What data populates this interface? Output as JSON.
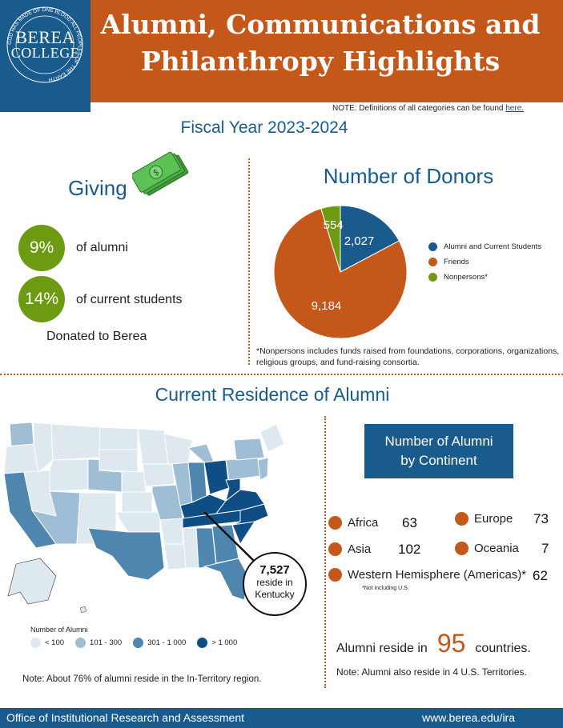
{
  "header": {
    "logo_line1": "BEREA",
    "logo_line2": "COLLEGE",
    "logo_ring_text": "GOD HAS MADE OF ONE BLOOD ALL PEOPLES OF THE EARTH",
    "title_line1": "Alumni, Communications and",
    "title_line2": "Philanthropy Highlights"
  },
  "note": {
    "text": "NOTE: Definitions of all categories can be found ",
    "link": "here."
  },
  "fiscal_year": "Fiscal Year 2023-2024",
  "giving": {
    "title": "Giving",
    "alumni_pct": "9%",
    "alumni_label": "of alumni",
    "students_pct": "14%",
    "students_label": "of current students",
    "donated": "Donated to Berea"
  },
  "donors": {
    "title": "Number of Donors",
    "note": "*Nonpersons includes funds raised from foundations, corporations, organizations, religious groups, and fund-raising consortia."
  },
  "chart_data": {
    "type": "pie",
    "title": "Number of Donors",
    "series": [
      {
        "name": "Alumni and Current Students",
        "value": 2027,
        "label": "2,027",
        "color": "#1a5b8e"
      },
      {
        "name": "Friends",
        "value": 9184,
        "label": "9,184",
        "color": "#c4571a"
      },
      {
        "name": "Nonpersons*",
        "value": 554,
        "label": "554",
        "color": "#6c9b12"
      }
    ],
    "legend_position": "right"
  },
  "residence": {
    "title": "Current Residence of Alumni",
    "ky_number": "7,527",
    "ky_line1": "reside in",
    "ky_line2": "Kentucky",
    "legend_title": "Number of Alumni",
    "legend": [
      {
        "label": "< 100",
        "color": "#dde8ef"
      },
      {
        "label": "101 - 300",
        "color": "#9fbdd5"
      },
      {
        "label": "301 - 1 000",
        "color": "#4f86b0"
      },
      {
        "label": "> 1 000",
        "color": "#0f4e85"
      }
    ],
    "note": "Note: About 76% of alumni reside in the In-Territory region."
  },
  "continents": {
    "title_line1": "Number of Alumni",
    "title_line2": "by Continent",
    "africa": {
      "name": "Africa",
      "value": "63"
    },
    "europe": {
      "name": "Europe",
      "value": "73"
    },
    "asia": {
      "name": "Asia",
      "value": "102"
    },
    "oceania": {
      "name": "Oceania",
      "value": "7"
    },
    "western": {
      "name": "Western Hemisphere (Americas)*",
      "value": "62"
    },
    "not_us": "*Not including U.S.",
    "countries_pre": "Alumni reside in",
    "countries_num": "95",
    "countries_post": "countries.",
    "territories": "Note: Alumni also reside in 4 U.S. Territories."
  },
  "footer": {
    "left": "Office of Institutional Research and Assessment",
    "right": "www.berea.edu/ira"
  },
  "colors": {
    "orange": "#c4571a",
    "blue": "#1a5b8e",
    "green": "#6c9b12"
  }
}
